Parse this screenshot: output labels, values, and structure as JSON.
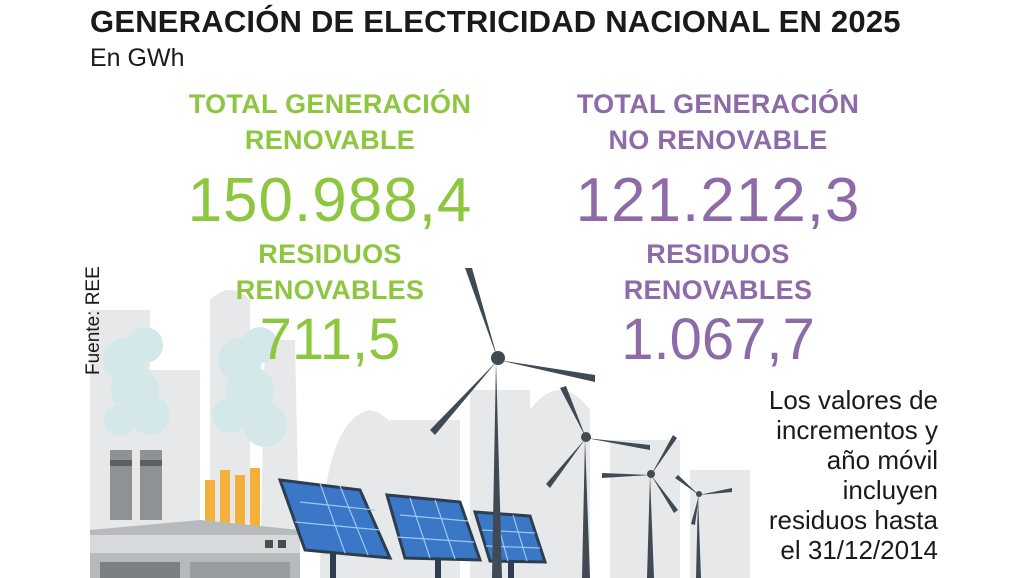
{
  "title": "GENERACIÓN DE ELECTRICIDAD NACIONAL EN 2025",
  "subtitle": "En GWh",
  "renewable": {
    "total_label_line1": "TOTAL GENERACIÓN",
    "total_label_line2": "RENOVABLE",
    "total_value": "150.988,4",
    "residues_label_line1": "RESIDUOS",
    "residues_label_line2": "RENOVABLES",
    "residues_value": "711,5"
  },
  "non_renewable": {
    "total_label_line1": "TOTAL GENERACIÓN",
    "total_label_line2": "NO RENOVABLE",
    "total_value": "121.212,3",
    "residues_label_line1": "RESIDUOS",
    "residues_label_line2": "RENOVABLES",
    "residues_value": "1.067,7"
  },
  "note_lines": [
    "Los valores de",
    "incrementos y",
    "año móvil",
    "incluyen",
    "residuos hasta",
    "el 31/12/2014"
  ],
  "source": "Fuente: REE",
  "colors": {
    "renewable": "#8dc63f",
    "non_renewable": "#8e6aa8",
    "text": "#1a1a1a"
  },
  "illustration_icons": [
    "factory-icon",
    "smoke-cloud-icon",
    "solar-panel-icon",
    "wind-turbine-icon"
  ]
}
